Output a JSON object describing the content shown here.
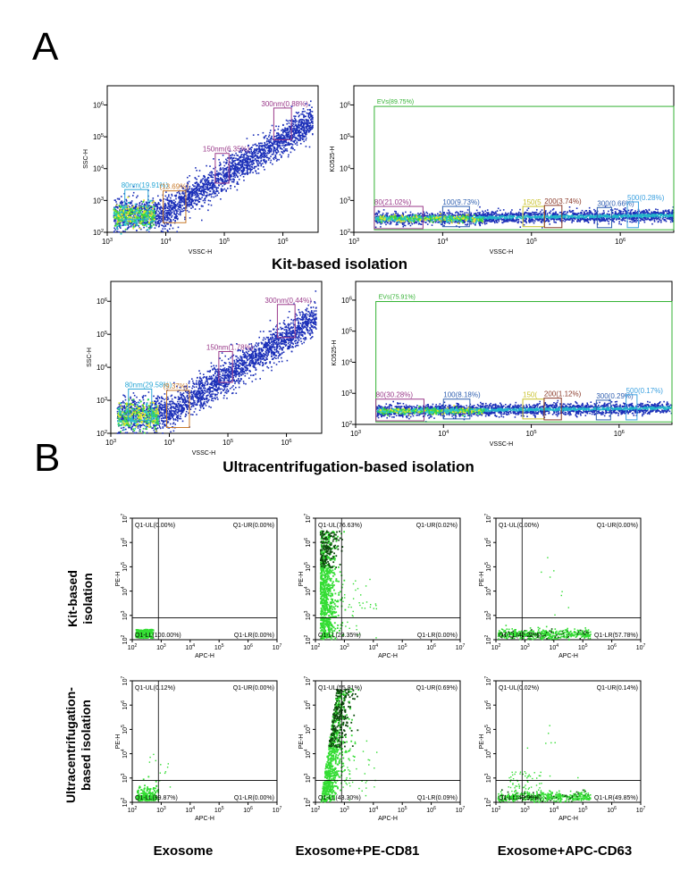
{
  "panel_labels": {
    "a": "A",
    "b": "B"
  },
  "colors": {
    "gate_cyan": "#2aa7d6",
    "gate_orange": "#c87a2a",
    "gate_purple": "#9a3a8a",
    "gate_blue": "#2f5fb0",
    "gate_yellow": "#c8c12a",
    "gate_brown": "#8a3a2a",
    "gate_light_blue": "#3aa0e0",
    "ev_green": "#33b233",
    "quad_green": "#33dd33",
    "quad_dark": "#0c4a0c"
  },
  "group_captions": {
    "kit": "Kit-based isolation",
    "ultra": "Ultracentrifugation-based isolation"
  },
  "row_labels": {
    "kit": "Kit-based isolation",
    "ultra": "Ultracentrifugation-based isolation"
  },
  "row_label_lines": {
    "kit": [
      "Kit-based",
      "isolation"
    ],
    "ultra": [
      "Ultracentrifugation-",
      "based isolation"
    ]
  },
  "col_labels": [
    "Exosome",
    "Exosome+PE-CD81",
    "Exosome+APC-CD63"
  ],
  "chart_data": [
    {
      "type": "scatter",
      "id": "A1",
      "title": "",
      "xlabel": "VSSC-H",
      "ylabel": "SSC-H",
      "xlim": [
        1000,
        4000000
      ],
      "ylim": [
        100,
        4000000
      ],
      "xticks": [
        "10^3",
        "10^4",
        "10^5",
        "10^6"
      ],
      "yticks": [
        "10^2",
        "10^3",
        "10^4",
        "10^5",
        "10^6"
      ],
      "gates": [
        {
          "label": "80nm(19.91%)",
          "color": "gate_cyan",
          "x": [
            2000,
            5000
          ],
          "y": [
            250,
            2200
          ]
        },
        {
          "label": "(13.69%)",
          "color": "gate_orange",
          "x": [
            9000,
            22000
          ],
          "y": [
            200,
            2000
          ]
        },
        {
          "label": "150nm(6.35%)",
          "color": "gate_purple",
          "x": [
            70000,
            120000
          ],
          "y": [
            3500,
            30000
          ]
        },
        {
          "label": "300nm(0.88%)",
          "color": "gate_purple",
          "x": [
            700000,
            1400000
          ],
          "y": [
            80000,
            800000
          ]
        }
      ]
    },
    {
      "type": "scatter",
      "id": "A2",
      "title": "",
      "xlabel": "VSSC-H",
      "ylabel": "KO525-H",
      "xlim": [
        1000,
        4000000
      ],
      "ylim": [
        100,
        4000000
      ],
      "xticks": [
        "10^3",
        "10^4",
        "10^5",
        "10^6"
      ],
      "yticks": [
        "10^2",
        "10^3",
        "10^4",
        "10^5",
        "10^6"
      ],
      "ev_gate": {
        "label": "EVs(89.75%)",
        "x": [
          1700,
          4000000
        ],
        "y": [
          120,
          900000
        ]
      },
      "gates": [
        {
          "label": "80(21.02%)",
          "color": "gate_purple",
          "x": [
            1700,
            6000
          ],
          "y": [
            130,
            650
          ]
        },
        {
          "label": "100(9.73%)",
          "color": "gate_blue",
          "x": [
            10000,
            20000
          ],
          "y": [
            150,
            650
          ]
        },
        {
          "label": "150(5",
          "color": "gate_yellow",
          "x": [
            80000,
            140000
          ],
          "y": [
            150,
            650
          ]
        },
        {
          "label": "200(3.74%)",
          "color": "gate_brown",
          "x": [
            140000,
            220000
          ],
          "y": [
            140,
            700
          ]
        },
        {
          "label": "300(0.66%)",
          "color": "gate_blue",
          "x": [
            550000,
            800000
          ],
          "y": [
            140,
            600
          ]
        },
        {
          "label": "500(0.28%)",
          "color": "gate_light_blue",
          "x": [
            1200000,
            1600000
          ],
          "y": [
            140,
            900
          ]
        }
      ]
    },
    {
      "type": "scatter",
      "id": "A3",
      "title": "",
      "xlabel": "VSSC-H",
      "ylabel": "SSC-H",
      "xlim": [
        1000,
        4000000
      ],
      "ylim": [
        100,
        4000000
      ],
      "xticks": [
        "10^3",
        "10^4",
        "10^5",
        "10^6"
      ],
      "yticks": [
        "10^2",
        "10^3",
        "10^4",
        "10^5",
        "10^6"
      ],
      "gates": [
        {
          "label": "80nm(29.58%)",
          "color": "gate_cyan",
          "x": [
            2000,
            5000
          ],
          "y": [
            250,
            2200
          ]
        },
        {
          "label": "(9.37%)",
          "color": "gate_orange",
          "x": [
            9000,
            22000
          ],
          "y": [
            150,
            2000
          ]
        },
        {
          "label": "150nm(1.78%)",
          "color": "gate_purple",
          "x": [
            70000,
            120000
          ],
          "y": [
            3500,
            30000
          ]
        },
        {
          "label": "300nm(0.44%)",
          "color": "gate_purple",
          "x": [
            700000,
            1400000
          ],
          "y": [
            80000,
            800000
          ]
        }
      ]
    },
    {
      "type": "scatter",
      "id": "A4",
      "title": "",
      "xlabel": "VSSC-H",
      "ylabel": "KO525-H",
      "xlim": [
        1000,
        4000000
      ],
      "ylim": [
        100,
        4000000
      ],
      "xticks": [
        "10^3",
        "10^4",
        "10^5",
        "10^6"
      ],
      "yticks": [
        "10^2",
        "10^3",
        "10^4",
        "10^5",
        "10^6"
      ],
      "ev_gate": {
        "label": "EVs(75.91%)",
        "x": [
          1700,
          4000000
        ],
        "y": [
          120,
          900000
        ]
      },
      "gates": [
        {
          "label": "80(30.28%)",
          "color": "gate_purple",
          "x": [
            1700,
            6000
          ],
          "y": [
            130,
            650
          ]
        },
        {
          "label": "100(8.18%)",
          "color": "gate_blue",
          "x": [
            10000,
            20000
          ],
          "y": [
            150,
            650
          ]
        },
        {
          "label": "150(",
          "color": "gate_yellow",
          "x": [
            80000,
            140000
          ],
          "y": [
            150,
            650
          ]
        },
        {
          "label": "200(1.12%)",
          "color": "gate_brown",
          "x": [
            140000,
            220000
          ],
          "y": [
            140,
            700
          ]
        },
        {
          "label": "300(0.29%)",
          "color": "gate_blue",
          "x": [
            550000,
            800000
          ],
          "y": [
            140,
            600
          ]
        },
        {
          "label": "500(0.17%)",
          "color": "gate_light_blue",
          "x": [
            1200000,
            1600000
          ],
          "y": [
            140,
            900
          ]
        }
      ]
    },
    {
      "type": "quadrant",
      "id": "B1",
      "xlabel": "APC-H",
      "ylabel": "PE-H",
      "xlim": [
        100,
        10000000
      ],
      "ylim": [
        100,
        10000000
      ],
      "gate": [
        800,
        800
      ],
      "xticks": [
        "10^2",
        "10^3",
        "10^4",
        "10^5",
        "10^6",
        "10^7"
      ],
      "yticks": [
        "10^2",
        "10^3",
        "10^4",
        "10^5",
        "10^6",
        "10^7"
      ],
      "quadrants": {
        "UL": "Q1-UL(0.00%)",
        "UR": "Q1-UR(0.00%)",
        "LL": "Q1-LL(100.00%)",
        "LR": "Q1-LR(0.00%)"
      }
    },
    {
      "type": "quadrant",
      "id": "B2",
      "xlabel": "APC-H",
      "ylabel": "PE-H",
      "xlim": [
        100,
        10000000
      ],
      "ylim": [
        100,
        10000000
      ],
      "gate": [
        800,
        800
      ],
      "xticks": [
        "10^2",
        "10^3",
        "10^4",
        "10^5",
        "10^6",
        "10^7"
      ],
      "yticks": [
        "10^2",
        "10^3",
        "10^4",
        "10^5",
        "10^6",
        "10^7"
      ],
      "quadrants": {
        "UL": "Q1-UL(76.63%)",
        "UR": "Q1-UR(0.02%)",
        "LL": "Q1-LL(23.35%)",
        "LR": "Q1-LR(0.00%)"
      }
    },
    {
      "type": "quadrant",
      "id": "B3",
      "xlabel": "APC-H",
      "ylabel": "PE-H",
      "xlim": [
        100,
        10000000
      ],
      "ylim": [
        100,
        10000000
      ],
      "gate": [
        800,
        800
      ],
      "xticks": [
        "10^2",
        "10^3",
        "10^4",
        "10^5",
        "10^6",
        "10^7"
      ],
      "yticks": [
        "10^2",
        "10^3",
        "10^4",
        "10^5",
        "10^6",
        "10^7"
      ],
      "quadrants": {
        "UL": "Q1-UL(0.00%)",
        "UR": "Q1-UR(0.00%)",
        "LL": "Q1-LL(42.22%)",
        "LR": "Q1-LR(57.78%)"
      }
    },
    {
      "type": "quadrant",
      "id": "B4",
      "xlabel": "APC-H",
      "ylabel": "PE-H",
      "xlim": [
        100,
        10000000
      ],
      "ylim": [
        100,
        10000000
      ],
      "gate": [
        800,
        800
      ],
      "xticks": [
        "10^2",
        "10^3",
        "10^4",
        "10^5",
        "10^6",
        "10^7"
      ],
      "yticks": [
        "10^2",
        "10^3",
        "10^4",
        "10^5",
        "10^6",
        "10^7"
      ],
      "quadrants": {
        "UL": "Q1-UL(0.12%)",
        "UR": "Q1-UR(0.00%)",
        "LL": "Q1-LL(99.87%)",
        "LR": "Q1-LR(0.00%)"
      }
    },
    {
      "type": "quadrant",
      "id": "B5",
      "xlabel": "APC-H",
      "ylabel": "PE-H",
      "xlim": [
        100,
        10000000
      ],
      "ylim": [
        100,
        10000000
      ],
      "gate": [
        800,
        800
      ],
      "xticks": [
        "10^2",
        "10^3",
        "10^4",
        "10^5",
        "10^6",
        "10^7"
      ],
      "yticks": [
        "10^2",
        "10^3",
        "10^4",
        "10^5",
        "10^6",
        "10^7"
      ],
      "quadrants": {
        "UL": "Q1-UL(55.91%)",
        "UR": "Q1-UR(0.69%)",
        "LL": "Q1-LL(43.30%)",
        "LR": "Q1-LR(0.09%)"
      }
    },
    {
      "type": "quadrant",
      "id": "B6",
      "xlabel": "APC-H",
      "ylabel": "PE-H",
      "xlim": [
        100,
        10000000
      ],
      "ylim": [
        100,
        10000000
      ],
      "gate": [
        800,
        800
      ],
      "xticks": [
        "10^2",
        "10^3",
        "10^4",
        "10^5",
        "10^6",
        "10^7"
      ],
      "yticks": [
        "10^2",
        "10^3",
        "10^4",
        "10^5",
        "10^6",
        "10^7"
      ],
      "quadrants": {
        "UL": "Q1-UL(0.02%)",
        "UR": "Q1-UR(0.14%)",
        "LL": "Q1-LL(49.99%)",
        "LR": "Q1-LR(49.85%)"
      }
    }
  ]
}
